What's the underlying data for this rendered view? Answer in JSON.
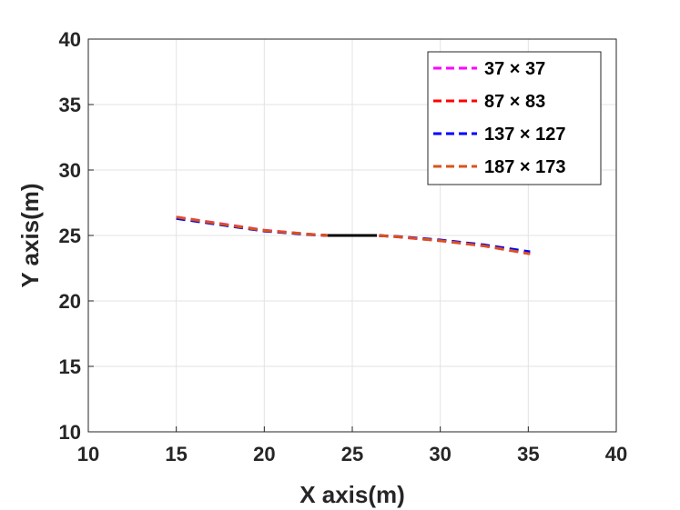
{
  "chart_data": {
    "type": "line",
    "title": "",
    "xlabel": "X axis(m)",
    "ylabel": "Y axis(m)",
    "xlim": [
      10,
      40
    ],
    "ylim": [
      10,
      40
    ],
    "xticks": [
      "10",
      "15",
      "20",
      "25",
      "30",
      "35",
      "40"
    ],
    "yticks": [
      "10",
      "15",
      "20",
      "25",
      "30",
      "35",
      "40"
    ],
    "grid": true,
    "legend_position": "top-right",
    "series": [
      {
        "name": "37 × 37",
        "color": "#ff00ff",
        "style": "dashed",
        "x": [
          15,
          17.5,
          20,
          22.5,
          23.6,
          26.4,
          27.5,
          30,
          32.5,
          35.1
        ],
        "y": [
          26.4,
          25.9,
          25.4,
          25.1,
          25.0,
          25.0,
          24.9,
          24.6,
          24.2,
          23.6
        ]
      },
      {
        "name": "87 × 83",
        "color": "#ff0000",
        "style": "dashed",
        "x": [
          15,
          17.5,
          20,
          22.5,
          23.6,
          26.4,
          27.5,
          30,
          32.5,
          35.1
        ],
        "y": [
          26.35,
          25.85,
          25.35,
          25.08,
          25.0,
          25.0,
          24.92,
          24.62,
          24.22,
          23.65
        ]
      },
      {
        "name": "137 × 127",
        "color": "#0000ff",
        "style": "dashed",
        "x": [
          15,
          17.5,
          20,
          22.5,
          23.6,
          26.4,
          27.5,
          30,
          32.5,
          35.1
        ],
        "y": [
          26.3,
          25.82,
          25.34,
          25.07,
          25.0,
          25.0,
          24.93,
          24.65,
          24.28,
          23.75
        ]
      },
      {
        "name": "187 × 173",
        "color": "#d95319",
        "style": "dashed",
        "x": [
          15,
          17.5,
          20,
          22.5,
          23.6,
          26.4,
          27.5,
          30,
          32.5,
          35.1
        ],
        "y": [
          26.4,
          25.88,
          25.38,
          25.1,
          25.0,
          25.0,
          24.92,
          24.6,
          24.2,
          23.6
        ]
      }
    ],
    "reference_segment": {
      "color": "#000000",
      "x": [
        23.6,
        26.4
      ],
      "y": [
        25,
        25
      ]
    }
  }
}
